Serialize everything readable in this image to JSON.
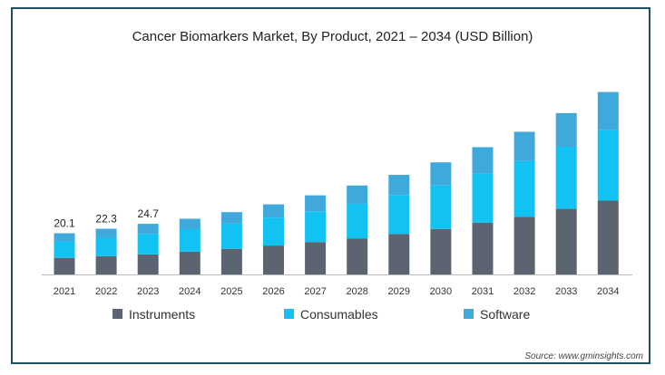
{
  "chart_data": {
    "type": "bar",
    "stacked": true,
    "title": "Cancer Biomarkers Market, By Product, 2021 – 2034 (USD Billion)",
    "categories": [
      "2021",
      "2022",
      "2023",
      "2024",
      "2025",
      "2026",
      "2027",
      "2028",
      "2029",
      "2030",
      "2031",
      "2032",
      "2033",
      "2034"
    ],
    "series": [
      {
        "name": "Instruments",
        "color": "#5b6470",
        "values": [
          8.1,
          8.9,
          9.8,
          11.1,
          12.5,
          14.1,
          15.8,
          17.6,
          19.8,
          22.2,
          25.3,
          28.1,
          32.0,
          36.0
        ]
      },
      {
        "name": "Consumables",
        "color": "#12c2f2",
        "values": [
          8.0,
          9.0,
          10.0,
          11.0,
          12.3,
          13.6,
          15.0,
          16.9,
          19.0,
          21.2,
          23.9,
          27.3,
          30.3,
          34.4
        ]
      },
      {
        "name": "Software",
        "color": "#3fa9dc",
        "values": [
          4.0,
          4.4,
          4.9,
          5.1,
          5.6,
          6.5,
          7.8,
          8.9,
          9.8,
          11.3,
          12.9,
          14.2,
          16.4,
          18.6
        ]
      }
    ],
    "data_labels": {
      "2021": "20.1",
      "2022": "22.3",
      "2023": "24.7"
    },
    "ylim": [
      0,
      95
    ],
    "grid": false,
    "legend_position": "bottom",
    "source": "Source: www.gminsights.com"
  }
}
